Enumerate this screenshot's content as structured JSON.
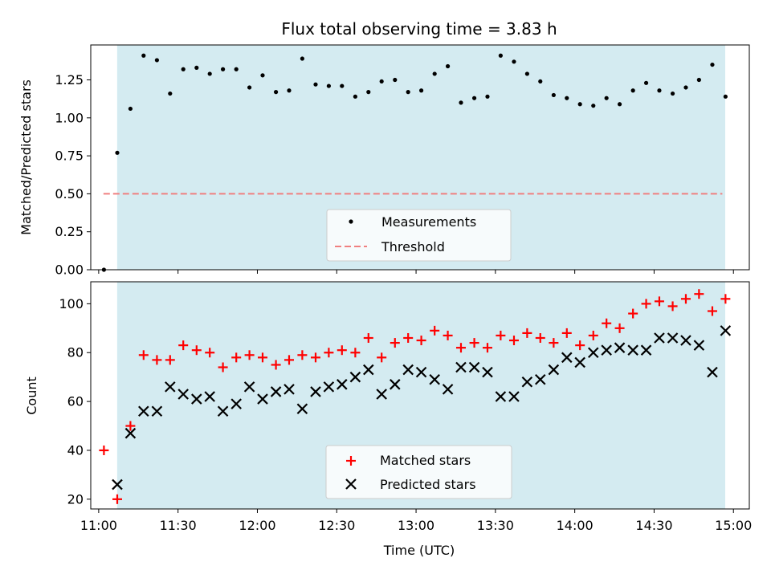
{
  "title": "Flux total observing time = 3.83 h",
  "chart_data": [
    {
      "type": "scatter",
      "ylabel": "Matched/Predicted stars",
      "ylim": [
        0,
        1.48
      ],
      "xlim": [
        10.95,
        15.1
      ],
      "shaded_interval": [
        11.1165,
        14.9481
      ],
      "shade_color": "#d4ebf1",
      "threshold": {
        "name": "Threshold",
        "value": 0.5,
        "x_range": [
          11.03,
          14.93
        ],
        "color": "#f08080"
      },
      "yticks": [
        0.0,
        0.25,
        0.5,
        0.75,
        1.0,
        1.25
      ],
      "ytick_labels": [
        "0.00",
        "0.25",
        "0.50",
        "0.75",
        "1.00",
        "1.25"
      ],
      "legend": {
        "position": "lower center",
        "entries": [
          "Measurements",
          "Threshold"
        ]
      },
      "series": [
        {
          "name": "Measurements",
          "marker": "dot",
          "color": "#000000",
          "x": [
            11.033,
            11.117,
            11.2,
            11.283,
            11.367,
            11.45,
            11.533,
            11.617,
            11.7,
            11.783,
            11.867,
            11.95,
            12.033,
            12.117,
            12.2,
            12.283,
            12.367,
            12.45,
            12.533,
            12.617,
            12.7,
            12.783,
            12.867,
            12.95,
            13.033,
            13.117,
            13.2,
            13.283,
            13.367,
            13.45,
            13.533,
            13.617,
            13.7,
            13.783,
            13.867,
            13.95,
            14.033,
            14.117,
            14.2,
            14.283,
            14.367,
            14.45,
            14.533,
            14.617,
            14.7,
            14.783,
            14.867,
            14.95
          ],
          "y": [
            0.0,
            0.77,
            1.06,
            1.41,
            1.38,
            1.16,
            1.32,
            1.33,
            1.29,
            1.32,
            1.32,
            1.2,
            1.28,
            1.17,
            1.18,
            1.39,
            1.22,
            1.21,
            1.21,
            1.14,
            1.17,
            1.24,
            1.25,
            1.17,
            1.18,
            1.29,
            1.34,
            1.1,
            1.13,
            1.14,
            1.41,
            1.37,
            1.29,
            1.24,
            1.15,
            1.13,
            1.09,
            1.08,
            1.13,
            1.09,
            1.18,
            1.23,
            1.18,
            1.16,
            1.2,
            1.25,
            1.35,
            1.14
          ]
        }
      ]
    },
    {
      "type": "scatter",
      "xlabel": "Time (UTC)",
      "ylabel": "Count",
      "ylim": [
        16,
        109
      ],
      "xlim": [
        10.95,
        15.1
      ],
      "shaded_interval": [
        11.1165,
        14.9481
      ],
      "shade_color": "#d4ebf1",
      "yticks": [
        20,
        40,
        60,
        80,
        100
      ],
      "ytick_labels": [
        "20",
        "40",
        "60",
        "80",
        "100"
      ],
      "xticks": [
        11.0,
        11.5,
        12.0,
        12.5,
        13.0,
        13.5,
        14.0,
        14.5,
        15.0
      ],
      "xtick_labels": [
        "11:00",
        "11:30",
        "12:00",
        "12:30",
        "13:00",
        "13:30",
        "14:00",
        "14:30",
        "15:00"
      ],
      "legend": {
        "position": "lower center",
        "entries": [
          "Matched stars",
          "Predicted stars"
        ]
      },
      "series": [
        {
          "name": "Matched stars",
          "marker": "plus",
          "color": "#ff0000",
          "x": [
            11.033,
            11.117,
            11.2,
            11.283,
            11.367,
            11.45,
            11.533,
            11.617,
            11.7,
            11.783,
            11.867,
            11.95,
            12.033,
            12.117,
            12.2,
            12.283,
            12.367,
            12.45,
            12.533,
            12.617,
            12.7,
            12.783,
            12.867,
            12.95,
            13.033,
            13.117,
            13.2,
            13.283,
            13.367,
            13.45,
            13.533,
            13.617,
            13.7,
            13.783,
            13.867,
            13.95,
            14.033,
            14.117,
            14.2,
            14.283,
            14.367,
            14.45,
            14.533,
            14.617,
            14.7,
            14.783,
            14.867,
            14.95
          ],
          "y": [
            40,
            20,
            50,
            79,
            77,
            77,
            83,
            81,
            80,
            74,
            78,
            79,
            78,
            75,
            77,
            79,
            78,
            80,
            81,
            80,
            86,
            78,
            84,
            86,
            85,
            89,
            87,
            82,
            84,
            82,
            87,
            85,
            88,
            86,
            84,
            88,
            83,
            87,
            92,
            90,
            96,
            100,
            101,
            99,
            102,
            104,
            97,
            102
          ]
        },
        {
          "name": "Predicted stars",
          "marker": "x",
          "color": "#000000",
          "x": [
            11.117,
            11.2,
            11.283,
            11.367,
            11.45,
            11.533,
            11.617,
            11.7,
            11.783,
            11.867,
            11.95,
            12.033,
            12.117,
            12.2,
            12.283,
            12.367,
            12.45,
            12.533,
            12.617,
            12.7,
            12.783,
            12.867,
            12.95,
            13.033,
            13.117,
            13.2,
            13.283,
            13.367,
            13.45,
            13.533,
            13.617,
            13.7,
            13.783,
            13.867,
            13.95,
            14.033,
            14.117,
            14.2,
            14.283,
            14.367,
            14.45,
            14.533,
            14.617,
            14.7,
            14.783,
            14.867,
            14.95
          ],
          "y": [
            26,
            47,
            56,
            56,
            66,
            63,
            61,
            62,
            56,
            59,
            66,
            61,
            64,
            65,
            57,
            64,
            66,
            67,
            70,
            73,
            63,
            67,
            73,
            72,
            69,
            65,
            74,
            74,
            72,
            62,
            62,
            68,
            69,
            73,
            78,
            76,
            80,
            81,
            82,
            81,
            81,
            86,
            86,
            85,
            83,
            72,
            89
          ]
        }
      ]
    }
  ]
}
